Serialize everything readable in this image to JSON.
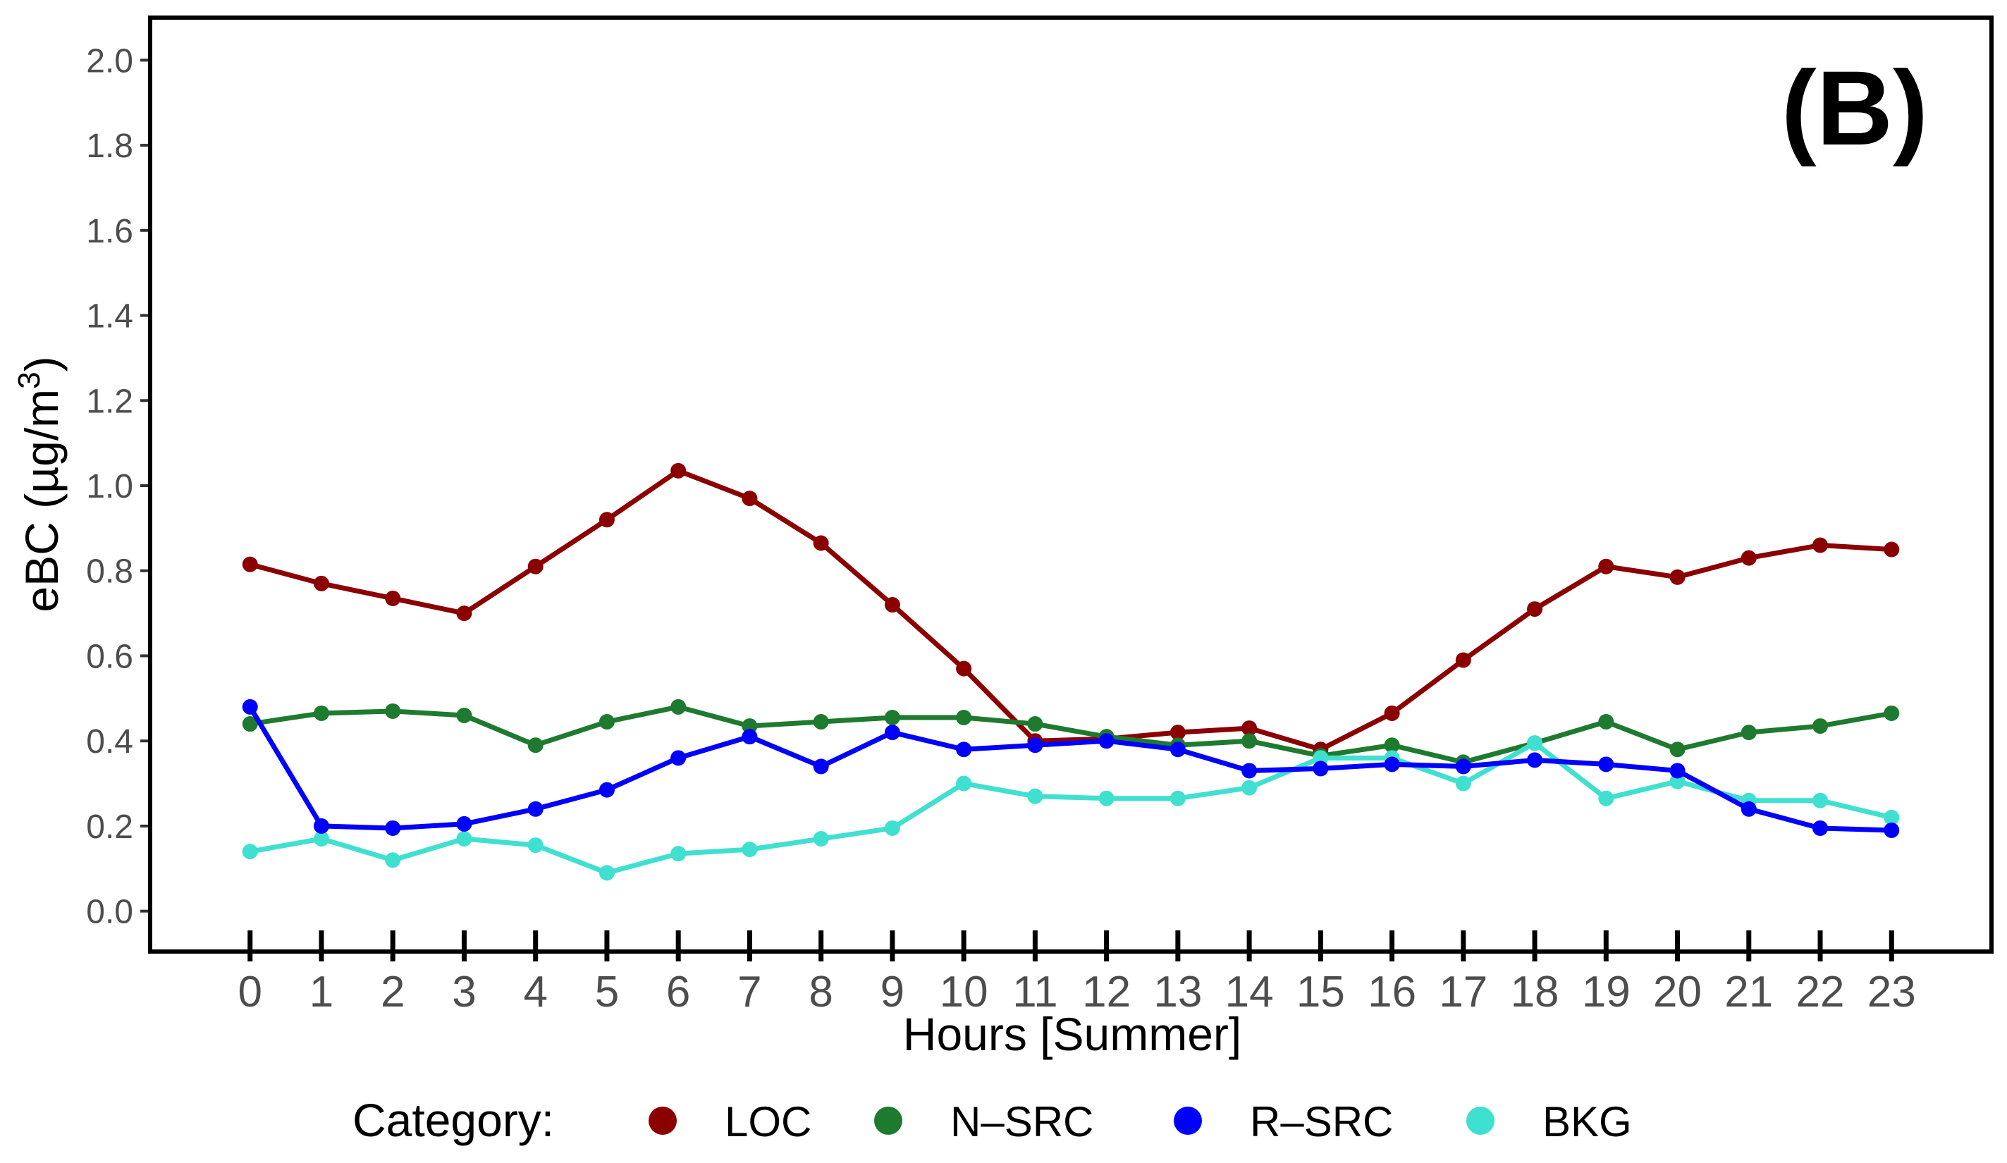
{
  "chart_data": {
    "type": "line",
    "panel_tag": "(B)",
    "xlabel": "Hours [Summer]",
    "ylabel": "eBC (µg/m",
    "ylabel_sup": "3",
    "ylabel_close": ")",
    "x": [
      0,
      1,
      2,
      3,
      4,
      5,
      6,
      7,
      8,
      9,
      10,
      11,
      12,
      13,
      14,
      15,
      16,
      17,
      18,
      19,
      20,
      21,
      22,
      23
    ],
    "x_tick_labels": [
      "0",
      "1",
      "2",
      "3",
      "4",
      "5",
      "6",
      "7",
      "8",
      "9",
      "10",
      "11",
      "12",
      "13",
      "14",
      "15",
      "16",
      "17",
      "18",
      "19",
      "20",
      "21",
      "22",
      "23"
    ],
    "y_ticks": [
      0.0,
      0.2,
      0.4,
      0.6,
      0.8,
      1.0,
      1.2,
      1.4,
      1.6,
      1.8,
      2.0
    ],
    "y_tick_labels": [
      "0.0",
      "0.2",
      "0.4",
      "0.6",
      "0.8",
      "1.0",
      "1.2",
      "1.4",
      "1.6",
      "1.8",
      "2.0"
    ],
    "xlim": [
      -1.4,
      24.4
    ],
    "ylim": [
      -0.095,
      2.1
    ],
    "grid": false,
    "legend": {
      "title": "Category:",
      "placement": "bottom"
    },
    "series": [
      {
        "name": "LOC",
        "color": "#8B0000",
        "values": [
          0.815,
          0.77,
          0.735,
          0.7,
          0.81,
          0.92,
          1.035,
          0.97,
          0.865,
          0.72,
          0.57,
          0.4,
          0.405,
          0.42,
          0.43,
          0.38,
          0.465,
          0.59,
          0.71,
          0.81,
          0.785,
          0.83,
          0.86,
          0.85
        ]
      },
      {
        "name": "N–SRC",
        "color": "#1E7A2E",
        "values": [
          0.44,
          0.465,
          0.47,
          0.46,
          0.39,
          0.445,
          0.48,
          0.435,
          0.445,
          0.455,
          0.455,
          0.44,
          0.41,
          0.39,
          0.4,
          0.365,
          0.39,
          0.35,
          0.395,
          0.445,
          0.38,
          0.42,
          0.435,
          0.465
        ]
      },
      {
        "name": "R–SRC",
        "color": "#0000FF",
        "values": [
          0.48,
          0.2,
          0.195,
          0.205,
          0.24,
          0.285,
          0.36,
          0.41,
          0.34,
          0.42,
          0.38,
          0.39,
          0.4,
          0.38,
          0.33,
          0.335,
          0.345,
          0.34,
          0.355,
          0.345,
          0.33,
          0.24,
          0.195,
          0.19
        ]
      },
      {
        "name": "BKG",
        "color": "#40E0D0",
        "values": [
          0.14,
          0.17,
          0.12,
          0.17,
          0.155,
          0.09,
          0.135,
          0.145,
          0.17,
          0.195,
          0.3,
          0.27,
          0.265,
          0.265,
          0.29,
          0.36,
          0.36,
          0.3,
          0.395,
          0.265,
          0.305,
          0.26,
          0.26,
          0.22
        ]
      }
    ]
  }
}
